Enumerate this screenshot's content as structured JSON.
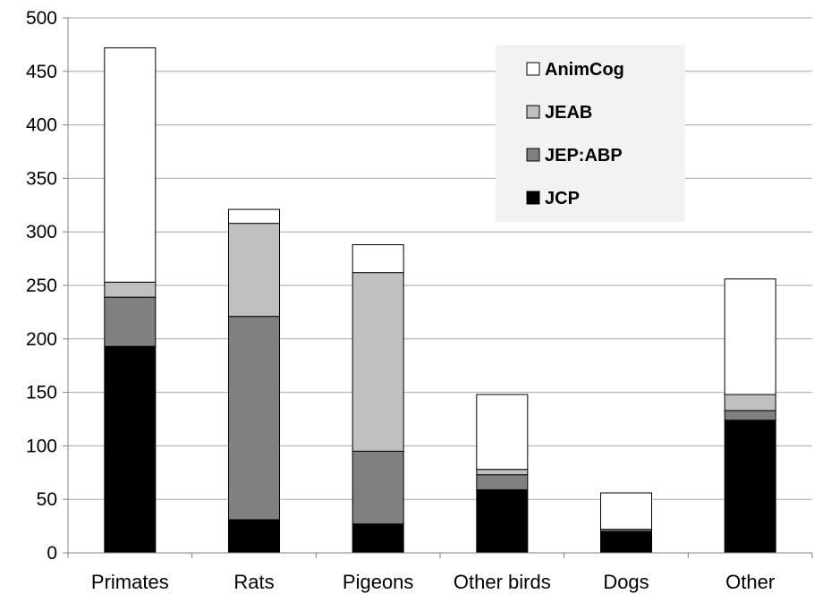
{
  "chart_data": {
    "type": "bar",
    "stacked": true,
    "categories": [
      "Primates",
      "Rats",
      "Pigeons",
      "Other birds",
      "Dogs",
      "Other"
    ],
    "series": [
      {
        "name": "JCP",
        "values": [
          193,
          31,
          27,
          59,
          20,
          124
        ],
        "color": "#000000"
      },
      {
        "name": "JEP:ABP",
        "values": [
          46,
          190,
          68,
          14,
          2,
          9
        ],
        "color": "#808080"
      },
      {
        "name": "JEAB",
        "values": [
          14,
          87,
          167,
          5,
          0,
          15
        ],
        "color": "#c0c0c0"
      },
      {
        "name": "AnimCog",
        "values": [
          219,
          13,
          26,
          70,
          34,
          108
        ],
        "color": "#ffffff"
      }
    ],
    "ylim": [
      0,
      500
    ],
    "yticks": [
      0,
      50,
      100,
      150,
      200,
      250,
      300,
      350,
      400,
      450,
      500
    ],
    "grid": true,
    "legend": {
      "position": "top-right",
      "order": [
        "AnimCog",
        "JEAB",
        "JEP:ABP",
        "JCP"
      ],
      "background": "#f2f2f2"
    },
    "title": "",
    "xlabel": "",
    "ylabel": ""
  }
}
